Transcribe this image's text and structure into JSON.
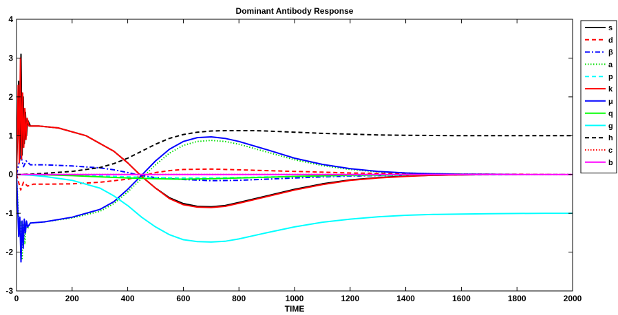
{
  "chart_data": {
    "type": "line",
    "title": "Dominant Antibody Response",
    "xlabel": "TIME",
    "ylabel": "",
    "xlim": [
      0,
      2000
    ],
    "ylim": [
      -3,
      4
    ],
    "xticks": [
      "0",
      "200",
      "400",
      "600",
      "800",
      "1000",
      "1200",
      "1400",
      "1600",
      "1800",
      "2000"
    ],
    "yticks": [
      "-3",
      "-2",
      "-1",
      "0",
      "1",
      "2",
      "3",
      "4"
    ],
    "grid": false,
    "legend_position": "outside-right-top",
    "series": [
      {
        "name": "s",
        "color": "#000000",
        "dash": "solid",
        "x": [
          0,
          8,
          12,
          16,
          20,
          24,
          28,
          32,
          36,
          40,
          50,
          80,
          150,
          250,
          350,
          400,
          450,
          500,
          550,
          600,
          650,
          700,
          750,
          800,
          900,
          1000,
          1100,
          1200,
          1300,
          1400,
          1500,
          1600,
          1700
        ],
        "y": [
          0,
          2.4,
          0.4,
          3.1,
          0.5,
          2.0,
          0.8,
          1.6,
          1.0,
          1.4,
          1.25,
          1.25,
          1.2,
          1.0,
          0.6,
          0.3,
          -0.05,
          -0.35,
          -0.6,
          -0.75,
          -0.82,
          -0.83,
          -0.8,
          -0.72,
          -0.55,
          -0.38,
          -0.24,
          -0.14,
          -0.08,
          -0.04,
          -0.02,
          -0.01,
          0
        ]
      },
      {
        "name": "d",
        "color": "#ff0000",
        "dash": "dashed",
        "x": [
          0,
          15,
          25,
          40,
          60,
          100,
          200,
          300,
          400,
          450,
          500,
          550,
          600,
          700,
          800,
          900,
          1000,
          1100,
          1200,
          1300,
          1400,
          1600,
          1800,
          2000
        ],
        "y": [
          0,
          -0.4,
          -0.2,
          -0.3,
          -0.25,
          -0.25,
          -0.24,
          -0.2,
          -0.12,
          -0.04,
          0.05,
          0.1,
          0.13,
          0.14,
          0.12,
          0.1,
          0.08,
          0.06,
          0.04,
          0.03,
          0.02,
          0.01,
          0.005,
          0
        ]
      },
      {
        "name": "β",
        "color": "#0000ff",
        "dash": "dashdot",
        "x": [
          0,
          15,
          25,
          35,
          50,
          100,
          200,
          300,
          350,
          400,
          450,
          500,
          600,
          700,
          800,
          900,
          1000,
          1100,
          1200,
          1300,
          1400,
          1500,
          1600,
          1700
        ],
        "y": [
          0,
          0.5,
          0.2,
          0.35,
          0.25,
          0.25,
          0.22,
          0.17,
          0.12,
          0.05,
          -0.03,
          -0.08,
          -0.13,
          -0.16,
          -0.15,
          -0.12,
          -0.09,
          -0.06,
          -0.04,
          -0.03,
          -0.02,
          -0.01,
          -0.005,
          0
        ]
      },
      {
        "name": "a",
        "color": "#00dd00",
        "dash": "dotted",
        "x": [
          0,
          10,
          15,
          20,
          25,
          30,
          35,
          40,
          50,
          100,
          200,
          300,
          350,
          400,
          450,
          500,
          550,
          600,
          650,
          700,
          750,
          800,
          900,
          1000,
          1100,
          1200,
          1300,
          1400,
          1500,
          1600,
          1700,
          1800
        ],
        "y": [
          0,
          -1.5,
          -1.2,
          -2.2,
          -1.3,
          -1.8,
          -1.2,
          -1.4,
          -1.25,
          -1.22,
          -1.12,
          -0.95,
          -0.75,
          -0.45,
          -0.1,
          0.25,
          0.55,
          0.75,
          0.85,
          0.88,
          0.85,
          0.78,
          0.58,
          0.38,
          0.23,
          0.13,
          0.07,
          0.04,
          0.02,
          0.01,
          0.005,
          0
        ]
      },
      {
        "name": "p",
        "color": "#00ffff",
        "dash": "dashed",
        "x": [
          0,
          100,
          200,
          300,
          400,
          500,
          600,
          700,
          800,
          1000,
          1200,
          1400,
          1600,
          1800,
          2000
        ],
        "y": [
          0,
          -0.01,
          -0.02,
          -0.04,
          -0.06,
          -0.08,
          -0.09,
          -0.09,
          -0.08,
          -0.05,
          -0.03,
          -0.02,
          -0.01,
          -0.005,
          0
        ]
      },
      {
        "name": "k",
        "color": "#ff0000",
        "dash": "solid",
        "x": [
          0,
          6,
          10,
          14,
          18,
          22,
          26,
          30,
          34,
          38,
          45,
          80,
          150,
          250,
          350,
          400,
          450,
          500,
          550,
          600,
          650,
          700,
          750,
          800,
          900,
          1000,
          1100,
          1200,
          1300,
          1400,
          1500,
          1600,
          1700
        ],
        "y": [
          0,
          2.3,
          0.3,
          3.0,
          0.4,
          2.1,
          0.7,
          1.7,
          0.9,
          1.45,
          1.25,
          1.25,
          1.2,
          1.0,
          0.6,
          0.3,
          -0.05,
          -0.35,
          -0.62,
          -0.78,
          -0.84,
          -0.85,
          -0.82,
          -0.74,
          -0.57,
          -0.4,
          -0.26,
          -0.15,
          -0.09,
          -0.05,
          -0.02,
          -0.01,
          0
        ]
      },
      {
        "name": "μ",
        "color": "#0000ff",
        "dash": "solid",
        "x": [
          0,
          8,
          12,
          16,
          20,
          24,
          28,
          32,
          36,
          40,
          50,
          100,
          200,
          300,
          350,
          400,
          450,
          500,
          550,
          600,
          650,
          700,
          750,
          800,
          900,
          1000,
          1100,
          1200,
          1300,
          1400,
          1500,
          1600,
          1700,
          1800
        ],
        "y": [
          0,
          -1.6,
          -1.1,
          -2.25,
          -1.2,
          -1.9,
          -1.15,
          -1.5,
          -1.2,
          -1.35,
          -1.25,
          -1.22,
          -1.1,
          -0.9,
          -0.7,
          -0.38,
          -0.02,
          0.35,
          0.65,
          0.85,
          0.95,
          0.97,
          0.93,
          0.85,
          0.64,
          0.42,
          0.26,
          0.15,
          0.08,
          0.04,
          0.02,
          0.01,
          0.005,
          0
        ]
      },
      {
        "name": "q",
        "color": "#00ff00",
        "dash": "solid",
        "x": [
          0,
          100,
          200,
          300,
          400,
          500,
          600,
          700,
          800,
          900,
          1000,
          1200,
          1400,
          1600
        ],
        "y": [
          0,
          -0.01,
          -0.03,
          -0.06,
          -0.09,
          -0.11,
          -0.12,
          -0.11,
          -0.09,
          -0.07,
          -0.05,
          -0.02,
          -0.01,
          0
        ]
      },
      {
        "name": "g",
        "color": "#00ffff",
        "dash": "solid",
        "x": [
          0,
          50,
          100,
          200,
          300,
          350,
          400,
          450,
          500,
          550,
          600,
          650,
          700,
          750,
          800,
          900,
          1000,
          1100,
          1200,
          1300,
          1400,
          1500,
          1600,
          1700,
          1800,
          1900,
          2000
        ],
        "y": [
          0,
          -0.02,
          -0.05,
          -0.15,
          -0.35,
          -0.55,
          -0.8,
          -1.1,
          -1.35,
          -1.55,
          -1.68,
          -1.73,
          -1.74,
          -1.72,
          -1.66,
          -1.5,
          -1.35,
          -1.23,
          -1.15,
          -1.09,
          -1.05,
          -1.03,
          -1.02,
          -1.01,
          -1.005,
          -1.0,
          -1.0
        ]
      },
      {
        "name": "h",
        "color": "#000000",
        "dash": "dashed",
        "x": [
          0,
          50,
          100,
          200,
          300,
          350,
          400,
          450,
          500,
          550,
          600,
          650,
          700,
          750,
          800,
          850,
          900,
          1000,
          1100,
          1200,
          1300,
          1400,
          1500,
          1600,
          1700,
          1800,
          1900,
          2000
        ],
        "y": [
          0,
          0.01,
          0.03,
          0.08,
          0.18,
          0.28,
          0.42,
          0.6,
          0.78,
          0.93,
          1.03,
          1.09,
          1.12,
          1.13,
          1.13,
          1.13,
          1.12,
          1.09,
          1.06,
          1.04,
          1.02,
          1.01,
          1.005,
          1.0,
          1.0,
          1.0,
          1.0,
          1.0
        ]
      },
      {
        "name": "c",
        "color": "#ff0000",
        "dash": "dotted",
        "x": [
          0,
          200,
          400,
          600,
          800,
          1000,
          1200,
          1400,
          1600,
          1800,
          2000
        ],
        "y": [
          0,
          0,
          0,
          0,
          0,
          0,
          0,
          0,
          0,
          0,
          0
        ]
      },
      {
        "name": "b",
        "color": "#ff00ff",
        "dash": "solid",
        "x": [
          0,
          200,
          400,
          600,
          800,
          1000,
          1200,
          1400,
          1600,
          1800,
          2000
        ],
        "y": [
          0,
          0,
          0,
          0,
          0,
          0,
          0,
          0,
          0,
          0,
          0
        ]
      }
    ]
  }
}
